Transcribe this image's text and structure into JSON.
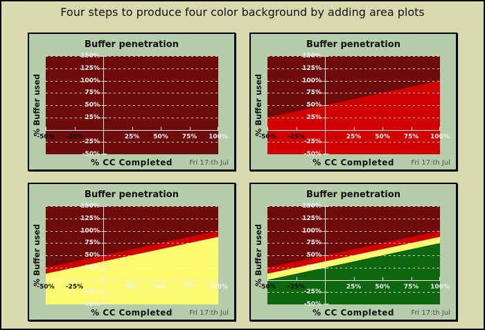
{
  "page": {
    "title": "Four steps to produce four color background by adding area plots",
    "background": "#d8d9ae",
    "border_color": "#000000"
  },
  "panel_common": {
    "title": "Buffer penetration",
    "y_axis_title": "% Buffer used",
    "x_axis_title": "% CC Completed",
    "date_stamp": "Fri 17:th Jul",
    "panel_background": "#b5cdab",
    "plot_background": "#6e0c0c",
    "axis_color": "#f2f2f2",
    "grid_color": "rgba(255,255,255,0.8)",
    "title_color": "#111111",
    "date_color": "#4d4d4d",
    "xlim": [
      -50,
      100
    ],
    "ylim": [
      -50,
      150
    ],
    "y_gridlines": [
      150,
      125,
      100,
      75,
      50,
      25,
      -25
    ],
    "x_ticks": [
      {
        "value": -50,
        "label": "-50%",
        "color": "#0d0d0d"
      },
      {
        "value": -25,
        "label": "-25%",
        "color": "#0d0d0d"
      },
      {
        "value": 25,
        "label": "25%",
        "color": "#f0f0f0"
      },
      {
        "value": 50,
        "label": "50%",
        "color": "#f0f0f0"
      },
      {
        "value": 75,
        "label": "75%",
        "color": "#f0f0f0"
      },
      {
        "value": 100,
        "label": "100%",
        "color": "#f0f0f0"
      }
    ],
    "y_ticks": [
      {
        "value": 150,
        "label": "150%",
        "color": "#f0f0f0"
      },
      {
        "value": 125,
        "label": "125%",
        "color": "#f0f0f0"
      },
      {
        "value": 100,
        "label": "100%",
        "color": "#f0f0f0"
      },
      {
        "value": 75,
        "label": "75%",
        "color": "#f0f0f0"
      },
      {
        "value": 50,
        "label": "50%",
        "color": "#f0f0f0"
      },
      {
        "value": 25,
        "label": "25%",
        "color": "#f0f0f0"
      },
      {
        "value": -25,
        "label": "-25%",
        "color": "#f0f0f0"
      },
      {
        "value": -50,
        "label": "-50%",
        "color": "#f0f0f0"
      }
    ]
  },
  "chart_data": [
    {
      "type": "area",
      "subplot": "step-1",
      "title": "Buffer penetration",
      "description": "background only",
      "areas": []
    },
    {
      "type": "area",
      "subplot": "step-2",
      "title": "Buffer penetration",
      "description": "red area added",
      "areas": [
        {
          "name": "red",
          "color": "#d10101",
          "boundary": [
            [
              -50,
              25
            ],
            [
              100,
              100
            ]
          ],
          "fill_to": -50
        }
      ]
    },
    {
      "type": "area",
      "subplot": "step-3",
      "title": "Buffer penetration",
      "description": "red and yellow areas",
      "areas": [
        {
          "name": "red",
          "color": "#d10101",
          "boundary": [
            [
              -50,
              25
            ],
            [
              100,
              100
            ]
          ],
          "fill_to": -50
        },
        {
          "name": "yellow",
          "color": "#fbfb6d",
          "boundary": [
            [
              -50,
              12.5
            ],
            [
              100,
              87.5
            ]
          ],
          "fill_to": -50
        }
      ]
    },
    {
      "type": "area",
      "subplot": "step-4",
      "title": "Buffer penetration",
      "description": "red, yellow and green areas",
      "areas": [
        {
          "name": "red",
          "color": "#d10101",
          "boundary": [
            [
              -50,
              25
            ],
            [
              100,
              100
            ]
          ],
          "fill_to": -50
        },
        {
          "name": "yellow",
          "color": "#fbfb6d",
          "boundary": [
            [
              -50,
              12.5
            ],
            [
              100,
              87.5
            ]
          ],
          "fill_to": -50
        },
        {
          "name": "green",
          "color": "#0e660e",
          "boundary": [
            [
              -50,
              0
            ],
            [
              100,
              75
            ]
          ],
          "fill_to": -50
        }
      ]
    }
  ]
}
